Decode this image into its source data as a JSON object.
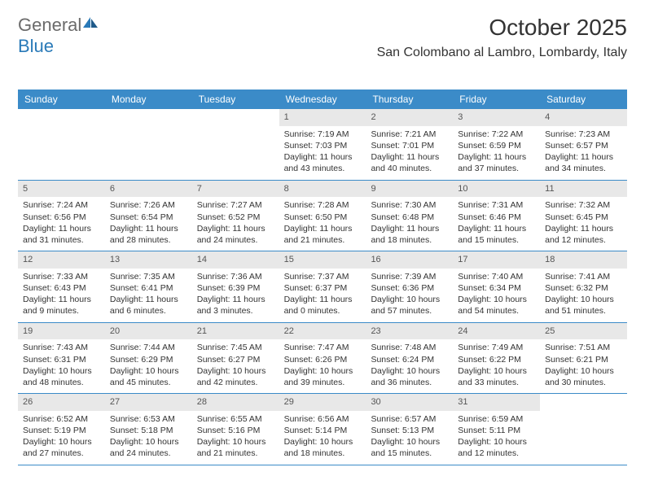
{
  "logo": {
    "text1": "General",
    "text2": "Blue"
  },
  "title": "October 2025",
  "location": "San Colombano al Lambro, Lombardy, Italy",
  "colors": {
    "header_bg": "#3b8bc8",
    "header_text": "#ffffff",
    "daynum_bg": "#e8e8e8",
    "row_border": "#3b8bc8",
    "body_text": "#333333",
    "logo_gray": "#6b6b6b",
    "logo_blue": "#2a7ab8"
  },
  "day_headers": [
    "Sunday",
    "Monday",
    "Tuesday",
    "Wednesday",
    "Thursday",
    "Friday",
    "Saturday"
  ],
  "weeks": [
    [
      {
        "n": "",
        "sr": "",
        "ss": "",
        "dl": ""
      },
      {
        "n": "",
        "sr": "",
        "ss": "",
        "dl": ""
      },
      {
        "n": "",
        "sr": "",
        "ss": "",
        "dl": ""
      },
      {
        "n": "1",
        "sr": "Sunrise: 7:19 AM",
        "ss": "Sunset: 7:03 PM",
        "dl": "Daylight: 11 hours and 43 minutes."
      },
      {
        "n": "2",
        "sr": "Sunrise: 7:21 AM",
        "ss": "Sunset: 7:01 PM",
        "dl": "Daylight: 11 hours and 40 minutes."
      },
      {
        "n": "3",
        "sr": "Sunrise: 7:22 AM",
        "ss": "Sunset: 6:59 PM",
        "dl": "Daylight: 11 hours and 37 minutes."
      },
      {
        "n": "4",
        "sr": "Sunrise: 7:23 AM",
        "ss": "Sunset: 6:57 PM",
        "dl": "Daylight: 11 hours and 34 minutes."
      }
    ],
    [
      {
        "n": "5",
        "sr": "Sunrise: 7:24 AM",
        "ss": "Sunset: 6:56 PM",
        "dl": "Daylight: 11 hours and 31 minutes."
      },
      {
        "n": "6",
        "sr": "Sunrise: 7:26 AM",
        "ss": "Sunset: 6:54 PM",
        "dl": "Daylight: 11 hours and 28 minutes."
      },
      {
        "n": "7",
        "sr": "Sunrise: 7:27 AM",
        "ss": "Sunset: 6:52 PM",
        "dl": "Daylight: 11 hours and 24 minutes."
      },
      {
        "n": "8",
        "sr": "Sunrise: 7:28 AM",
        "ss": "Sunset: 6:50 PM",
        "dl": "Daylight: 11 hours and 21 minutes."
      },
      {
        "n": "9",
        "sr": "Sunrise: 7:30 AM",
        "ss": "Sunset: 6:48 PM",
        "dl": "Daylight: 11 hours and 18 minutes."
      },
      {
        "n": "10",
        "sr": "Sunrise: 7:31 AM",
        "ss": "Sunset: 6:46 PM",
        "dl": "Daylight: 11 hours and 15 minutes."
      },
      {
        "n": "11",
        "sr": "Sunrise: 7:32 AM",
        "ss": "Sunset: 6:45 PM",
        "dl": "Daylight: 11 hours and 12 minutes."
      }
    ],
    [
      {
        "n": "12",
        "sr": "Sunrise: 7:33 AM",
        "ss": "Sunset: 6:43 PM",
        "dl": "Daylight: 11 hours and 9 minutes."
      },
      {
        "n": "13",
        "sr": "Sunrise: 7:35 AM",
        "ss": "Sunset: 6:41 PM",
        "dl": "Daylight: 11 hours and 6 minutes."
      },
      {
        "n": "14",
        "sr": "Sunrise: 7:36 AM",
        "ss": "Sunset: 6:39 PM",
        "dl": "Daylight: 11 hours and 3 minutes."
      },
      {
        "n": "15",
        "sr": "Sunrise: 7:37 AM",
        "ss": "Sunset: 6:37 PM",
        "dl": "Daylight: 11 hours and 0 minutes."
      },
      {
        "n": "16",
        "sr": "Sunrise: 7:39 AM",
        "ss": "Sunset: 6:36 PM",
        "dl": "Daylight: 10 hours and 57 minutes."
      },
      {
        "n": "17",
        "sr": "Sunrise: 7:40 AM",
        "ss": "Sunset: 6:34 PM",
        "dl": "Daylight: 10 hours and 54 minutes."
      },
      {
        "n": "18",
        "sr": "Sunrise: 7:41 AM",
        "ss": "Sunset: 6:32 PM",
        "dl": "Daylight: 10 hours and 51 minutes."
      }
    ],
    [
      {
        "n": "19",
        "sr": "Sunrise: 7:43 AM",
        "ss": "Sunset: 6:31 PM",
        "dl": "Daylight: 10 hours and 48 minutes."
      },
      {
        "n": "20",
        "sr": "Sunrise: 7:44 AM",
        "ss": "Sunset: 6:29 PM",
        "dl": "Daylight: 10 hours and 45 minutes."
      },
      {
        "n": "21",
        "sr": "Sunrise: 7:45 AM",
        "ss": "Sunset: 6:27 PM",
        "dl": "Daylight: 10 hours and 42 minutes."
      },
      {
        "n": "22",
        "sr": "Sunrise: 7:47 AM",
        "ss": "Sunset: 6:26 PM",
        "dl": "Daylight: 10 hours and 39 minutes."
      },
      {
        "n": "23",
        "sr": "Sunrise: 7:48 AM",
        "ss": "Sunset: 6:24 PM",
        "dl": "Daylight: 10 hours and 36 minutes."
      },
      {
        "n": "24",
        "sr": "Sunrise: 7:49 AM",
        "ss": "Sunset: 6:22 PM",
        "dl": "Daylight: 10 hours and 33 minutes."
      },
      {
        "n": "25",
        "sr": "Sunrise: 7:51 AM",
        "ss": "Sunset: 6:21 PM",
        "dl": "Daylight: 10 hours and 30 minutes."
      }
    ],
    [
      {
        "n": "26",
        "sr": "Sunrise: 6:52 AM",
        "ss": "Sunset: 5:19 PM",
        "dl": "Daylight: 10 hours and 27 minutes."
      },
      {
        "n": "27",
        "sr": "Sunrise: 6:53 AM",
        "ss": "Sunset: 5:18 PM",
        "dl": "Daylight: 10 hours and 24 minutes."
      },
      {
        "n": "28",
        "sr": "Sunrise: 6:55 AM",
        "ss": "Sunset: 5:16 PM",
        "dl": "Daylight: 10 hours and 21 minutes."
      },
      {
        "n": "29",
        "sr": "Sunrise: 6:56 AM",
        "ss": "Sunset: 5:14 PM",
        "dl": "Daylight: 10 hours and 18 minutes."
      },
      {
        "n": "30",
        "sr": "Sunrise: 6:57 AM",
        "ss": "Sunset: 5:13 PM",
        "dl": "Daylight: 10 hours and 15 minutes."
      },
      {
        "n": "31",
        "sr": "Sunrise: 6:59 AM",
        "ss": "Sunset: 5:11 PM",
        "dl": "Daylight: 10 hours and 12 minutes."
      },
      {
        "n": "",
        "sr": "",
        "ss": "",
        "dl": ""
      }
    ]
  ]
}
